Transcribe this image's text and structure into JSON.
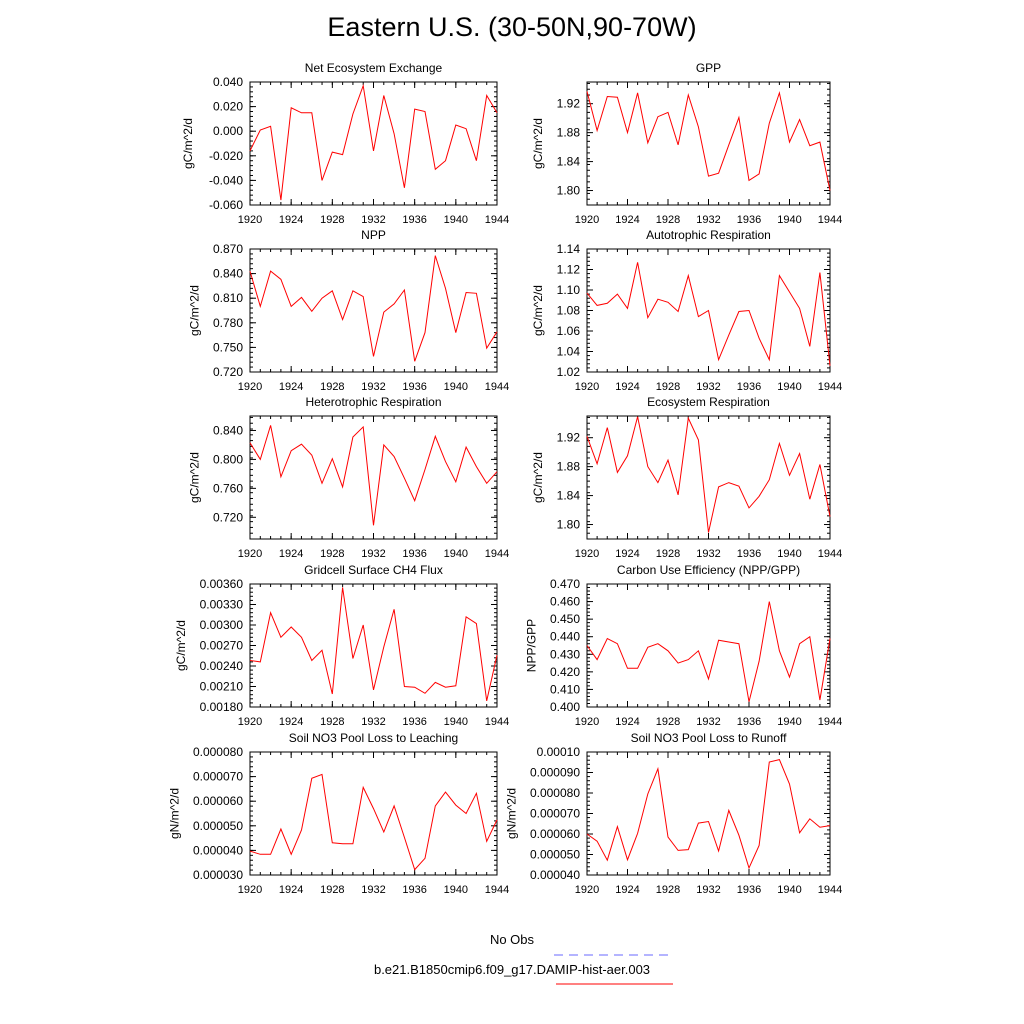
{
  "title": "Eastern U.S. (30-50N,90-70W)",
  "line_color": "#ff0000",
  "obs_color": "#6a6aff",
  "legend": {
    "obs_label": "No Obs",
    "model_label": "b.e21.B1850cmip6.f09_g17.DAMIP-hist-aer.003"
  },
  "chart_data": [
    {
      "type": "line",
      "title": "Net Ecosystem Exchange",
      "ylabel": "gC/m^2/d",
      "xlim": [
        1920,
        1944
      ],
      "xticks": [
        "1920",
        "1924",
        "1928",
        "1932",
        "1936",
        "1940",
        "1944"
      ],
      "ylim": [
        -0.06,
        0.04
      ],
      "yticks": [
        -0.06,
        -0.04,
        -0.02,
        0.0,
        0.02,
        0.04
      ],
      "yticklabels": [
        "-0.060",
        "-0.040",
        "-0.020",
        "0.000",
        "0.020",
        "0.040"
      ],
      "x": [
        1920,
        1921,
        1922,
        1923,
        1924,
        1925,
        1926,
        1927,
        1928,
        1929,
        1930,
        1931,
        1932,
        1933,
        1934,
        1935,
        1936,
        1937,
        1938,
        1939,
        1940,
        1941,
        1942,
        1943,
        1944
      ],
      "y": [
        -0.016,
        0.001,
        0.004,
        -0.056,
        0.019,
        0.015,
        0.015,
        -0.04,
        -0.017,
        -0.019,
        0.014,
        0.037,
        -0.016,
        0.029,
        -0.002,
        -0.046,
        0.018,
        0.016,
        -0.031,
        -0.024,
        0.005,
        0.002,
        -0.024,
        0.029,
        0.015
      ]
    },
    {
      "type": "line",
      "title": "GPP",
      "ylabel": "gC/m^2/d",
      "xlim": [
        1920,
        1944
      ],
      "xticks": [
        "1920",
        "1924",
        "1928",
        "1932",
        "1936",
        "1940",
        "1944"
      ],
      "ylim": [
        1.78,
        1.95
      ],
      "yticks": [
        1.8,
        1.84,
        1.88,
        1.92
      ],
      "yticklabels": [
        "1.80",
        "1.84",
        "1.88",
        "1.92"
      ],
      "x": [
        1920,
        1921,
        1922,
        1923,
        1924,
        1925,
        1926,
        1927,
        1928,
        1929,
        1930,
        1931,
        1932,
        1933,
        1934,
        1935,
        1936,
        1937,
        1938,
        1939,
        1940,
        1941,
        1942,
        1943,
        1944
      ],
      "y": [
        1.937,
        1.883,
        1.93,
        1.929,
        1.88,
        1.935,
        1.866,
        1.902,
        1.908,
        1.863,
        1.932,
        1.888,
        1.82,
        1.824,
        1.863,
        1.901,
        1.814,
        1.823,
        1.893,
        1.935,
        1.867,
        1.898,
        1.862,
        1.867,
        1.8
      ]
    },
    {
      "type": "line",
      "title": "NPP",
      "ylabel": "gC/m^2/d",
      "xlim": [
        1920,
        1944
      ],
      "xticks": [
        "1920",
        "1924",
        "1928",
        "1932",
        "1936",
        "1940",
        "1944"
      ],
      "ylim": [
        0.72,
        0.87
      ],
      "yticks": [
        0.72,
        0.75,
        0.78,
        0.81,
        0.84,
        0.87
      ],
      "yticklabels": [
        "0.720",
        "0.750",
        "0.780",
        "0.810",
        "0.840",
        "0.870"
      ],
      "x": [
        1920,
        1921,
        1922,
        1923,
        1924,
        1925,
        1926,
        1927,
        1928,
        1929,
        1930,
        1931,
        1932,
        1933,
        1934,
        1935,
        1936,
        1937,
        1938,
        1939,
        1940,
        1941,
        1942,
        1943,
        1944
      ],
      "y": [
        0.843,
        0.8,
        0.843,
        0.833,
        0.8,
        0.811,
        0.794,
        0.81,
        0.819,
        0.784,
        0.819,
        0.812,
        0.739,
        0.793,
        0.803,
        0.82,
        0.733,
        0.768,
        0.862,
        0.822,
        0.768,
        0.817,
        0.816,
        0.749,
        0.769
      ]
    },
    {
      "type": "line",
      "title": "Autotrophic Respiration",
      "ylabel": "gC/m^2/d",
      "xlim": [
        1920,
        1944
      ],
      "xticks": [
        "1920",
        "1924",
        "1928",
        "1932",
        "1936",
        "1940",
        "1944"
      ],
      "ylim": [
        1.02,
        1.14
      ],
      "yticks": [
        1.02,
        1.04,
        1.06,
        1.08,
        1.1,
        1.12,
        1.14
      ],
      "yticklabels": [
        "1.02",
        "1.04",
        "1.06",
        "1.08",
        "1.10",
        "1.12",
        "1.14"
      ],
      "x": [
        1920,
        1921,
        1922,
        1923,
        1924,
        1925,
        1926,
        1927,
        1928,
        1929,
        1930,
        1931,
        1932,
        1933,
        1934,
        1935,
        1936,
        1937,
        1938,
        1939,
        1940,
        1941,
        1942,
        1943,
        1944
      ],
      "y": [
        1.097,
        1.085,
        1.087,
        1.096,
        1.082,
        1.127,
        1.073,
        1.091,
        1.088,
        1.079,
        1.114,
        1.074,
        1.08,
        1.032,
        1.056,
        1.079,
        1.08,
        1.053,
        1.032,
        1.114,
        1.098,
        1.082,
        1.045,
        1.117,
        1.026
      ]
    },
    {
      "type": "line",
      "title": "Heterotrophic Respiration",
      "ylabel": "gC/m^2/d",
      "xlim": [
        1920,
        1944
      ],
      "xticks": [
        "1920",
        "1924",
        "1928",
        "1932",
        "1936",
        "1940",
        "1944"
      ],
      "ylim": [
        0.69,
        0.86
      ],
      "yticks": [
        0.72,
        0.76,
        0.8,
        0.84
      ],
      "yticklabels": [
        "0.720",
        "0.760",
        "0.800",
        "0.840"
      ],
      "x": [
        1920,
        1921,
        1922,
        1923,
        1924,
        1925,
        1926,
        1927,
        1928,
        1929,
        1930,
        1931,
        1932,
        1933,
        1934,
        1935,
        1936,
        1937,
        1938,
        1939,
        1940,
        1941,
        1942,
        1943,
        1944
      ],
      "y": [
        0.823,
        0.8,
        0.847,
        0.776,
        0.812,
        0.821,
        0.806,
        0.767,
        0.801,
        0.762,
        0.831,
        0.845,
        0.709,
        0.82,
        0.804,
        0.774,
        0.743,
        0.786,
        0.832,
        0.797,
        0.769,
        0.817,
        0.79,
        0.767,
        0.783
      ]
    },
    {
      "type": "line",
      "title": "Ecosystem Respiration",
      "ylabel": "gC/m^2/d",
      "xlim": [
        1920,
        1944
      ],
      "xticks": [
        "1920",
        "1924",
        "1928",
        "1932",
        "1936",
        "1940",
        "1944"
      ],
      "ylim": [
        1.78,
        1.95
      ],
      "yticks": [
        1.8,
        1.84,
        1.88,
        1.92
      ],
      "yticklabels": [
        "1.80",
        "1.84",
        "1.88",
        "1.92"
      ],
      "x": [
        1920,
        1921,
        1922,
        1923,
        1924,
        1925,
        1926,
        1927,
        1928,
        1929,
        1930,
        1931,
        1932,
        1933,
        1934,
        1935,
        1936,
        1937,
        1938,
        1939,
        1940,
        1941,
        1942,
        1943,
        1944
      ],
      "y": [
        1.922,
        1.884,
        1.934,
        1.872,
        1.895,
        1.949,
        1.88,
        1.858,
        1.889,
        1.841,
        1.947,
        1.917,
        1.789,
        1.852,
        1.858,
        1.853,
        1.823,
        1.839,
        1.862,
        1.912,
        1.868,
        1.898,
        1.835,
        1.883,
        1.811
      ]
    },
    {
      "type": "line",
      "title": "Gridcell Surface CH4 Flux",
      "ylabel": "gC/m^2/d",
      "xlim": [
        1920,
        1944
      ],
      "xticks": [
        "1920",
        "1924",
        "1928",
        "1932",
        "1936",
        "1940",
        "1944"
      ],
      "ylim": [
        0.0018,
        0.0036
      ],
      "yticks": [
        0.0018,
        0.0021,
        0.0024,
        0.0027,
        0.003,
        0.0033,
        0.0036
      ],
      "yticklabels": [
        "0.00180",
        "0.00210",
        "0.00240",
        "0.00270",
        "0.00300",
        "0.00330",
        "0.00360"
      ],
      "x": [
        1920,
        1921,
        1922,
        1923,
        1924,
        1925,
        1926,
        1927,
        1928,
        1929,
        1930,
        1931,
        1932,
        1933,
        1934,
        1935,
        1936,
        1937,
        1938,
        1939,
        1940,
        1941,
        1942,
        1943,
        1944
      ],
      "y": [
        0.00248,
        0.00246,
        0.00318,
        0.00282,
        0.00297,
        0.00282,
        0.00248,
        0.00263,
        0.00199,
        0.00355,
        0.00251,
        0.003,
        0.00205,
        0.00268,
        0.00323,
        0.0021,
        0.00209,
        0.002,
        0.00216,
        0.00209,
        0.00211,
        0.00312,
        0.00302,
        0.00189,
        0.00256
      ]
    },
    {
      "type": "line",
      "title": "Carbon Use Efficiency (NPP/GPP)",
      "ylabel": "NPP/GPP",
      "xlim": [
        1920,
        1944
      ],
      "xticks": [
        "1920",
        "1924",
        "1928",
        "1932",
        "1936",
        "1940",
        "1944"
      ],
      "ylim": [
        0.4,
        0.47
      ],
      "yticks": [
        0.4,
        0.41,
        0.42,
        0.43,
        0.44,
        0.45,
        0.46,
        0.47
      ],
      "yticklabels": [
        "0.400",
        "0.410",
        "0.420",
        "0.430",
        "0.440",
        "0.450",
        "0.460",
        "0.470"
      ],
      "x": [
        1920,
        1921,
        1922,
        1923,
        1924,
        1925,
        1926,
        1927,
        1928,
        1929,
        1930,
        1931,
        1932,
        1933,
        1934,
        1935,
        1936,
        1937,
        1938,
        1939,
        1940,
        1941,
        1942,
        1943,
        1944
      ],
      "y": [
        0.435,
        0.427,
        0.439,
        0.436,
        0.422,
        0.422,
        0.434,
        0.436,
        0.432,
        0.425,
        0.427,
        0.432,
        0.416,
        0.438,
        0.437,
        0.436,
        0.403,
        0.426,
        0.46,
        0.432,
        0.417,
        0.436,
        0.44,
        0.404,
        0.439
      ]
    },
    {
      "type": "line",
      "title": "Soil NO3 Pool Loss to Leaching",
      "ylabel": "gN/m^2/d",
      "xlim": [
        1920,
        1944
      ],
      "xticks": [
        "1920",
        "1924",
        "1928",
        "1932",
        "1936",
        "1940",
        "1944"
      ],
      "ylim": [
        3e-05,
        8e-05
      ],
      "yticks": [
        3e-05,
        4e-05,
        5e-05,
        6e-05,
        7e-05,
        8e-05
      ],
      "yticklabels": [
        "0.000030",
        "0.000040",
        "0.000050",
        "0.000060",
        "0.000070",
        "0.000080"
      ],
      "x": [
        1920,
        1921,
        1922,
        1923,
        1924,
        1925,
        1926,
        1927,
        1928,
        1929,
        1930,
        1931,
        1932,
        1933,
        1934,
        1935,
        1936,
        1937,
        1938,
        1939,
        1940,
        1941,
        1942,
        1943,
        1944
      ],
      "y": [
        3.97e-05,
        3.84e-05,
        3.84e-05,
        4.87e-05,
        3.84e-05,
        4.83e-05,
        6.93e-05,
        7.09e-05,
        4.31e-05,
        4.27e-05,
        4.27e-05,
        6.56e-05,
        5.7e-05,
        4.75e-05,
        5.81e-05,
        4.53e-05,
        3.22e-05,
        3.68e-05,
        5.81e-05,
        6.37e-05,
        5.84e-05,
        5.5e-05,
        6.32e-05,
        4.37e-05,
        5.24e-05
      ]
    },
    {
      "type": "line",
      "title": "Soil NO3 Pool Loss to Runoff",
      "ylabel": "gN/m^2/d",
      "xlim": [
        1920,
        1944
      ],
      "xticks": [
        "1920",
        "1924",
        "1928",
        "1932",
        "1936",
        "1940",
        "1944"
      ],
      "ylim": [
        4e-05,
        0.0001
      ],
      "yticks": [
        4e-05,
        5e-05,
        6e-05,
        7e-05,
        8e-05,
        9e-05,
        0.0001
      ],
      "yticklabels": [
        "0.000040",
        "0.000050",
        "0.000060",
        "0.000070",
        "0.000080",
        "0.000090",
        "0.00010"
      ],
      "x": [
        1920,
        1921,
        1922,
        1923,
        1924,
        1925,
        1926,
        1927,
        1928,
        1929,
        1930,
        1931,
        1932,
        1933,
        1934,
        1935,
        1936,
        1937,
        1938,
        1939,
        1940,
        1941,
        1942,
        1943,
        1944
      ],
      "y": [
        6e-05,
        5.65e-05,
        4.72e-05,
        6.36e-05,
        4.74e-05,
        6.03e-05,
        7.95e-05,
        9.18e-05,
        5.85e-05,
        5.2e-05,
        5.24e-05,
        6.53e-05,
        6.61e-05,
        5.17e-05,
        7.15e-05,
        5.94e-05,
        4.34e-05,
        5.44e-05,
        9.51e-05,
        9.63e-05,
        8.44e-05,
        6.06e-05,
        6.74e-05,
        6.33e-05,
        6.41e-05
      ]
    }
  ]
}
